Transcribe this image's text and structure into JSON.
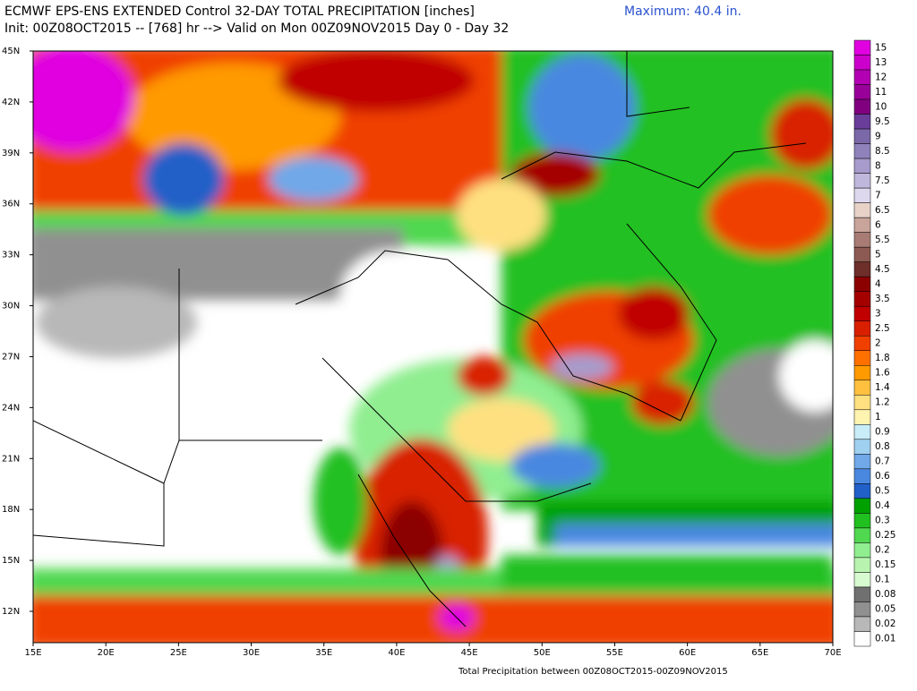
{
  "header": {
    "title": "ECMWF EPS-ENS EXTENDED Control 32-DAY TOTAL PRECIPITATION [inches]",
    "subtitle": "Init: 00Z08OCT2015 -- [768] hr --> Valid on Mon 00Z09NOV2015  Day 0 - Day 32",
    "maximum": "Maximum:  40.4 in."
  },
  "map": {
    "lat_labels": [
      "45N",
      "42N",
      "39N",
      "36N",
      "33N",
      "30N",
      "27N",
      "24N",
      "21N",
      "18N",
      "15N",
      "12N"
    ],
    "lon_labels": [
      "15E",
      "20E",
      "25E",
      "30E",
      "35E",
      "40E",
      "45E",
      "50E",
      "55E",
      "60E",
      "65E",
      "70E"
    ]
  },
  "legend": {
    "levels": [
      {
        "label": "15",
        "color": "#e000e0"
      },
      {
        "label": "13",
        "color": "#cc00cc"
      },
      {
        "label": "12",
        "color": "#b300b3"
      },
      {
        "label": "11",
        "color": "#990099"
      },
      {
        "label": "10",
        "color": "#800080"
      },
      {
        "label": "9.5",
        "color": "#6a3d9a"
      },
      {
        "label": "9",
        "color": "#7b68a8"
      },
      {
        "label": "8.5",
        "color": "#8f82bb"
      },
      {
        "label": "8",
        "color": "#a79bcc"
      },
      {
        "label": "7.5",
        "color": "#c0b8dc"
      },
      {
        "label": "7",
        "color": "#ddd8ee"
      },
      {
        "label": "6.5",
        "color": "#e8d2c8"
      },
      {
        "label": "6",
        "color": "#c8a49a"
      },
      {
        "label": "5.5",
        "color": "#a87c74"
      },
      {
        "label": "5",
        "color": "#8c5a52"
      },
      {
        "label": "4.5",
        "color": "#6e2e2a"
      },
      {
        "label": "4",
        "color": "#8b0000"
      },
      {
        "label": "3.5",
        "color": "#a40000"
      },
      {
        "label": "3",
        "color": "#c00000"
      },
      {
        "label": "2.5",
        "color": "#d82000"
      },
      {
        "label": "2",
        "color": "#f04000"
      },
      {
        "label": "1.8",
        "color": "#ff7000"
      },
      {
        "label": "1.6",
        "color": "#ff9a00"
      },
      {
        "label": "1.4",
        "color": "#ffc040"
      },
      {
        "label": "1.2",
        "color": "#ffe080"
      },
      {
        "label": "1",
        "color": "#fff3b0"
      },
      {
        "label": "0.9",
        "color": "#c8ecf8"
      },
      {
        "label": "0.8",
        "color": "#a0d0f0"
      },
      {
        "label": "0.7",
        "color": "#70a8e8"
      },
      {
        "label": "0.6",
        "color": "#4a88e0"
      },
      {
        "label": "0.5",
        "color": "#2060c8"
      },
      {
        "label": "0.4",
        "color": "#00a000"
      },
      {
        "label": "0.3",
        "color": "#20c020"
      },
      {
        "label": "0.25",
        "color": "#50d850"
      },
      {
        "label": "0.2",
        "color": "#90ee90"
      },
      {
        "label": "0.15",
        "color": "#b8f4b0"
      },
      {
        "label": "0.1",
        "color": "#d8fad0"
      },
      {
        "label": "0.08",
        "color": "#707070"
      },
      {
        "label": "0.05",
        "color": "#909090"
      },
      {
        "label": "0.02",
        "color": "#b8b8b8"
      },
      {
        "label": "0.01",
        "color": "#ffffff"
      }
    ]
  },
  "footer": "Total Precipitation between 00Z08OCT2015-00Z09NOV2015"
}
